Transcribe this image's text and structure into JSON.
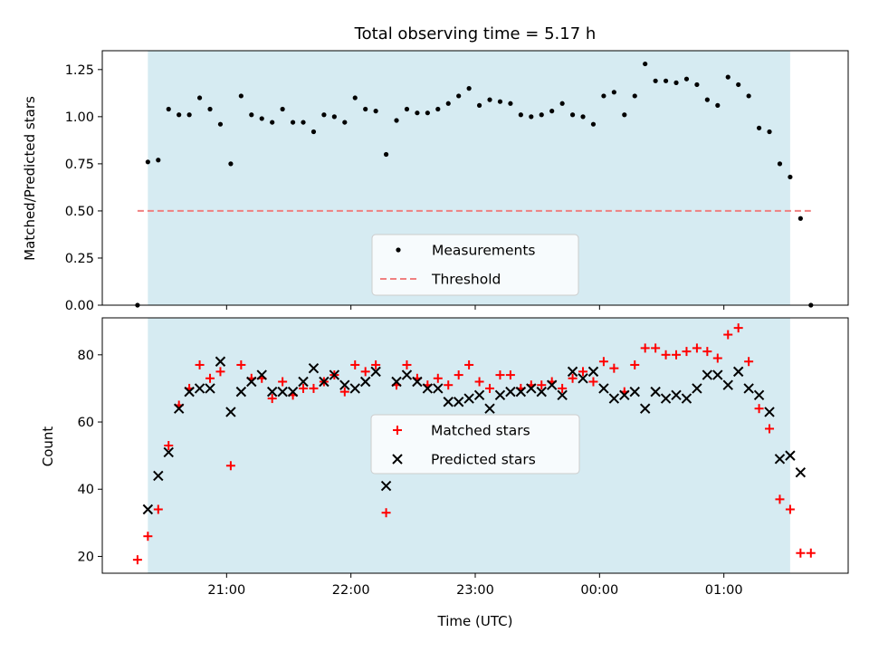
{
  "chart_data": [
    {
      "type": "scatter",
      "title": "Total observing time = 5.17 h",
      "ylabel": "Matched/Predicted stars",
      "xlabel": "",
      "ylim": [
        0,
        1.35
      ],
      "yticks": [
        "0.00",
        "0.25",
        "0.50",
        "0.75",
        "1.00",
        "1.25"
      ],
      "yticks_values": [
        0,
        0.25,
        0.5,
        0.75,
        1.0,
        1.25
      ],
      "grid": false,
      "legend_position": "lower-center",
      "shaded_region": {
        "from": "20:22",
        "to": "01:32",
        "color": "#add8e6"
      },
      "threshold": {
        "name": "Threshold",
        "value": 0.5,
        "from": "20:17",
        "to": "01:42",
        "color": "#f08080"
      },
      "series": [
        {
          "name": "Measurements",
          "color": "#000000",
          "marker": "dot",
          "points": [
            [
              "20:17",
              0.0
            ],
            [
              "20:22",
              0.76
            ],
            [
              "20:27",
              0.77
            ],
            [
              "20:32",
              1.04
            ],
            [
              "20:37",
              1.01
            ],
            [
              "20:42",
              1.01
            ],
            [
              "20:47",
              1.1
            ],
            [
              "20:52",
              1.04
            ],
            [
              "20:57",
              0.96
            ],
            [
              "21:02",
              0.75
            ],
            [
              "21:07",
              1.11
            ],
            [
              "21:12",
              1.01
            ],
            [
              "21:17",
              0.99
            ],
            [
              "21:22",
              0.97
            ],
            [
              "21:27",
              1.04
            ],
            [
              "21:32",
              0.97
            ],
            [
              "21:37",
              0.97
            ],
            [
              "21:42",
              0.92
            ],
            [
              "21:47",
              1.01
            ],
            [
              "21:52",
              1.0
            ],
            [
              "21:57",
              0.97
            ],
            [
              "22:02",
              1.1
            ],
            [
              "22:07",
              1.04
            ],
            [
              "22:12",
              1.03
            ],
            [
              "22:17",
              0.8
            ],
            [
              "22:22",
              0.98
            ],
            [
              "22:27",
              1.04
            ],
            [
              "22:32",
              1.02
            ],
            [
              "22:37",
              1.02
            ],
            [
              "22:42",
              1.04
            ],
            [
              "22:47",
              1.07
            ],
            [
              "22:52",
              1.11
            ],
            [
              "22:57",
              1.15
            ],
            [
              "23:02",
              1.06
            ],
            [
              "23:07",
              1.09
            ],
            [
              "23:12",
              1.08
            ],
            [
              "23:17",
              1.07
            ],
            [
              "23:22",
              1.01
            ],
            [
              "23:27",
              1.0
            ],
            [
              "23:32",
              1.01
            ],
            [
              "23:37",
              1.03
            ],
            [
              "23:42",
              1.07
            ],
            [
              "23:47",
              1.01
            ],
            [
              "23:52",
              1.0
            ],
            [
              "23:57",
              0.96
            ],
            [
              "00:02",
              1.11
            ],
            [
              "00:07",
              1.13
            ],
            [
              "00:12",
              1.01
            ],
            [
              "00:17",
              1.11
            ],
            [
              "00:22",
              1.28
            ],
            [
              "00:27",
              1.19
            ],
            [
              "00:32",
              1.19
            ],
            [
              "00:37",
              1.18
            ],
            [
              "00:42",
              1.2
            ],
            [
              "00:47",
              1.17
            ],
            [
              "00:52",
              1.09
            ],
            [
              "00:57",
              1.06
            ],
            [
              "01:02",
              1.21
            ],
            [
              "01:07",
              1.17
            ],
            [
              "01:12",
              1.11
            ],
            [
              "01:17",
              0.94
            ],
            [
              "01:22",
              0.92
            ],
            [
              "01:27",
              0.75
            ],
            [
              "01:32",
              0.68
            ],
            [
              "01:37",
              0.46
            ],
            [
              "01:42",
              0.0
            ]
          ]
        }
      ]
    },
    {
      "type": "scatter",
      "title": "",
      "ylabel": "Count",
      "xlabel": "Time (UTC)",
      "ylim": [
        15,
        91
      ],
      "yticks": [
        "20",
        "40",
        "60",
        "80"
      ],
      "yticks_values": [
        20,
        40,
        60,
        80
      ],
      "xlim": [
        "20:00",
        "02:00"
      ],
      "xticks": [
        "21:00",
        "22:00",
        "23:00",
        "00:00",
        "01:00"
      ],
      "xticks_values": [
        "21:00",
        "22:00",
        "23:00",
        "00:00",
        "01:00"
      ],
      "grid": false,
      "legend_position": "center",
      "shaded_region": {
        "from": "20:22",
        "to": "01:32",
        "color": "#add8e6"
      },
      "series": [
        {
          "name": "Matched stars",
          "color": "#ff0000",
          "marker": "plus",
          "points": [
            [
              "20:17",
              19
            ],
            [
              "20:22",
              26
            ],
            [
              "20:27",
              34
            ],
            [
              "20:32",
              53
            ],
            [
              "20:37",
              65
            ],
            [
              "20:42",
              70
            ],
            [
              "20:47",
              77
            ],
            [
              "20:52",
              73
            ],
            [
              "20:57",
              75
            ],
            [
              "21:02",
              47
            ],
            [
              "21:07",
              77
            ],
            [
              "21:12",
              73
            ],
            [
              "21:17",
              73
            ],
            [
              "21:22",
              67
            ],
            [
              "21:27",
              72
            ],
            [
              "21:32",
              68
            ],
            [
              "21:37",
              70
            ],
            [
              "21:42",
              70
            ],
            [
              "21:47",
              72
            ],
            [
              "21:52",
              74
            ],
            [
              "21:57",
              69
            ],
            [
              "22:02",
              77
            ],
            [
              "22:07",
              75
            ],
            [
              "22:12",
              77
            ],
            [
              "22:17",
              33
            ],
            [
              "22:22",
              71
            ],
            [
              "22:27",
              77
            ],
            [
              "22:32",
              73
            ],
            [
              "22:37",
              71
            ],
            [
              "22:42",
              73
            ],
            [
              "22:47",
              71
            ],
            [
              "22:52",
              74
            ],
            [
              "22:57",
              77
            ],
            [
              "23:02",
              72
            ],
            [
              "23:07",
              70
            ],
            [
              "23:12",
              74
            ],
            [
              "23:17",
              74
            ],
            [
              "23:22",
              70
            ],
            [
              "23:27",
              71
            ],
            [
              "23:32",
              71
            ],
            [
              "23:37",
              72
            ],
            [
              "23:42",
              70
            ],
            [
              "23:47",
              73
            ],
            [
              "23:52",
              75
            ],
            [
              "23:57",
              72
            ],
            [
              "00:02",
              78
            ],
            [
              "00:07",
              76
            ],
            [
              "00:12",
              69
            ],
            [
              "00:17",
              77
            ],
            [
              "00:22",
              82
            ],
            [
              "00:27",
              82
            ],
            [
              "00:32",
              80
            ],
            [
              "00:37",
              80
            ],
            [
              "00:42",
              81
            ],
            [
              "00:47",
              82
            ],
            [
              "00:52",
              81
            ],
            [
              "00:57",
              79
            ],
            [
              "01:02",
              86
            ],
            [
              "01:07",
              88
            ],
            [
              "01:12",
              78
            ],
            [
              "01:17",
              64
            ],
            [
              "01:22",
              58
            ],
            [
              "01:27",
              37
            ],
            [
              "01:32",
              34
            ],
            [
              "01:37",
              21
            ],
            [
              "01:42",
              21
            ]
          ]
        },
        {
          "name": "Predicted stars",
          "color": "#000000",
          "marker": "x",
          "points": [
            [
              "20:22",
              34
            ],
            [
              "20:27",
              44
            ],
            [
              "20:32",
              51
            ],
            [
              "20:37",
              64
            ],
            [
              "20:42",
              69
            ],
            [
              "20:47",
              70
            ],
            [
              "20:52",
              70
            ],
            [
              "20:57",
              78
            ],
            [
              "21:02",
              63
            ],
            [
              "21:07",
              69
            ],
            [
              "21:12",
              72
            ],
            [
              "21:17",
              74
            ],
            [
              "21:22",
              69
            ],
            [
              "21:27",
              69
            ],
            [
              "21:32",
              69
            ],
            [
              "21:37",
              72
            ],
            [
              "21:42",
              76
            ],
            [
              "21:47",
              72
            ],
            [
              "21:52",
              74
            ],
            [
              "21:57",
              71
            ],
            [
              "22:02",
              70
            ],
            [
              "22:07",
              72
            ],
            [
              "22:12",
              75
            ],
            [
              "22:17",
              41
            ],
            [
              "22:22",
              72
            ],
            [
              "22:27",
              74
            ],
            [
              "22:32",
              72
            ],
            [
              "22:37",
              70
            ],
            [
              "22:42",
              70
            ],
            [
              "22:47",
              66
            ],
            [
              "22:52",
              66
            ],
            [
              "22:57",
              67
            ],
            [
              "23:02",
              68
            ],
            [
              "23:07",
              64
            ],
            [
              "23:12",
              68
            ],
            [
              "23:17",
              69
            ],
            [
              "23:22",
              69
            ],
            [
              "23:27",
              70
            ],
            [
              "23:32",
              69
            ],
            [
              "23:37",
              71
            ],
            [
              "23:42",
              68
            ],
            [
              "23:47",
              75
            ],
            [
              "23:52",
              73
            ],
            [
              "23:57",
              75
            ],
            [
              "00:02",
              70
            ],
            [
              "00:07",
              67
            ],
            [
              "00:12",
              68
            ],
            [
              "00:17",
              69
            ],
            [
              "00:22",
              64
            ],
            [
              "00:27",
              69
            ],
            [
              "00:32",
              67
            ],
            [
              "00:37",
              68
            ],
            [
              "00:42",
              67
            ],
            [
              "00:47",
              70
            ],
            [
              "00:52",
              74
            ],
            [
              "00:57",
              74
            ],
            [
              "01:02",
              71
            ],
            [
              "01:07",
              75
            ],
            [
              "01:12",
              70
            ],
            [
              "01:17",
              68
            ],
            [
              "01:22",
              63
            ],
            [
              "01:27",
              49
            ],
            [
              "01:32",
              50
            ],
            [
              "01:37",
              45
            ]
          ]
        }
      ]
    }
  ]
}
